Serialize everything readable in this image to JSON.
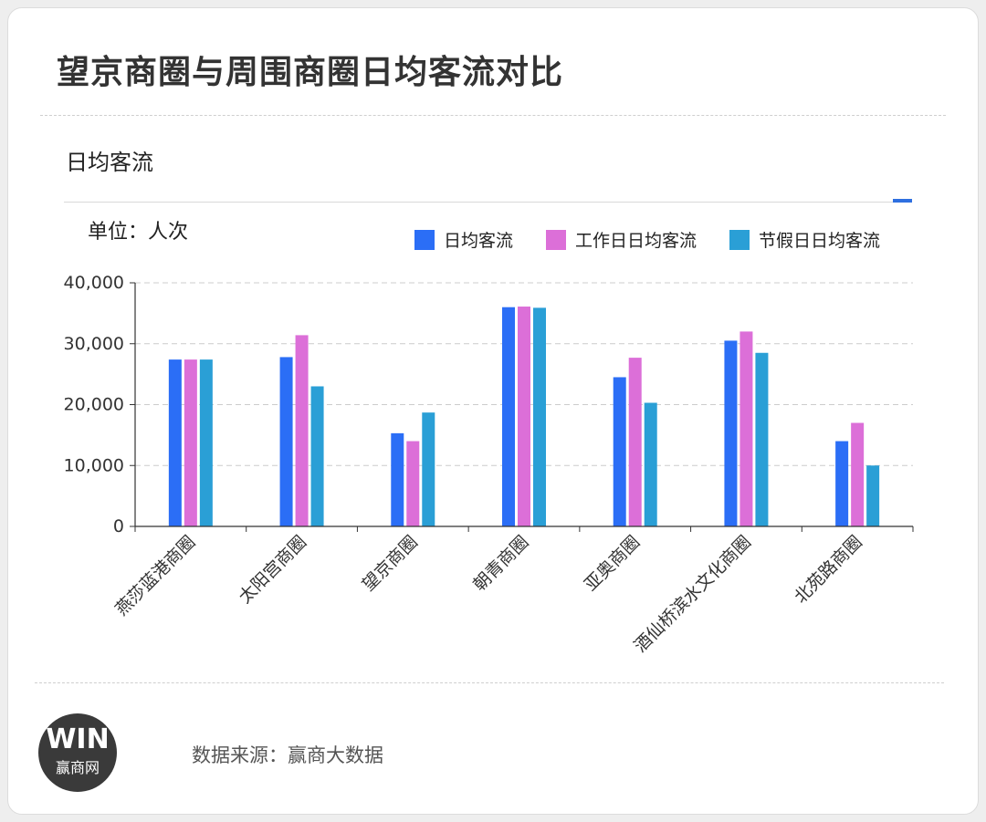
{
  "title": "望京商圈与周围商圈日均客流对比",
  "subtitle": "日均客流",
  "unit_label": "单位：人次",
  "legend": [
    {
      "name": "日均客流",
      "color": "#2b6ef6"
    },
    {
      "name": "工作日日均客流",
      "color": "#dc6fd8"
    },
    {
      "name": "节假日日均客流",
      "color": "#2a9fd6"
    }
  ],
  "chart_data": {
    "type": "bar",
    "categories": [
      "燕莎蓝港商圈",
      "太阳宫商圈",
      "望京商圈",
      "朝青商圈",
      "亚奥商圈",
      "酒仙桥滨水文化商圈",
      "北苑路商圈"
    ],
    "series": [
      {
        "name": "日均客流",
        "color": "#2b6ef6",
        "values": [
          27400,
          27800,
          15300,
          36000,
          24500,
          30500,
          14000
        ]
      },
      {
        "name": "工作日日均客流",
        "color": "#dc6fd8",
        "values": [
          27400,
          31400,
          14000,
          36100,
          27700,
          32000,
          17000
        ]
      },
      {
        "name": "节假日日均客流",
        "color": "#2a9fd6",
        "values": [
          27400,
          23000,
          18700,
          35900,
          20300,
          28500,
          10000
        ]
      }
    ],
    "ylim": [
      0,
      40000
    ],
    "yticks": [
      0,
      10000,
      20000,
      30000,
      40000
    ],
    "ytick_labels": [
      "0",
      "10,000",
      "20,000",
      "30,000",
      "40,000"
    ],
    "grid": true,
    "legend_position": "top-right"
  },
  "footer": {
    "logo_mark": "WIN",
    "logo_text": "赢商网",
    "source": "数据来源：赢商大数据"
  }
}
